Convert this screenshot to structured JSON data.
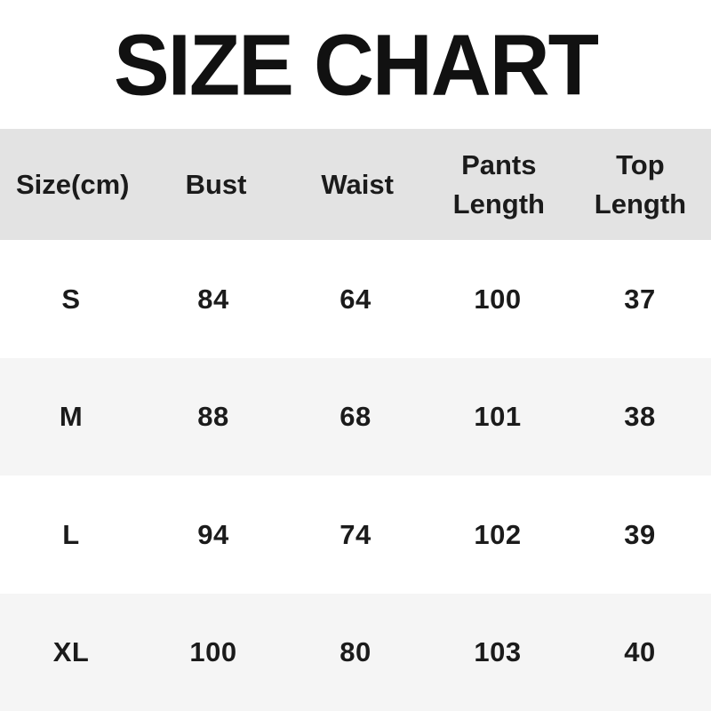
{
  "title": "SIZE CHART",
  "colors": {
    "header_bg": "#e3e3e3",
    "alt_row_bg": "#f5f5f5",
    "row_bg": "#ffffff",
    "text": "#1b1b1b"
  },
  "chart_data": {
    "type": "table",
    "title": "SIZE CHART",
    "units": "cm",
    "columns": [
      "Size(cm)",
      "Bust",
      "Waist",
      "Pants Length",
      "Top Length"
    ],
    "rows": [
      [
        "S",
        "84",
        "64",
        "100",
        "37"
      ],
      [
        "M",
        "88",
        "68",
        "101",
        "38"
      ],
      [
        "L",
        "94",
        "74",
        "102",
        "39"
      ],
      [
        "XL",
        "100",
        "80",
        "103",
        "40"
      ]
    ]
  }
}
